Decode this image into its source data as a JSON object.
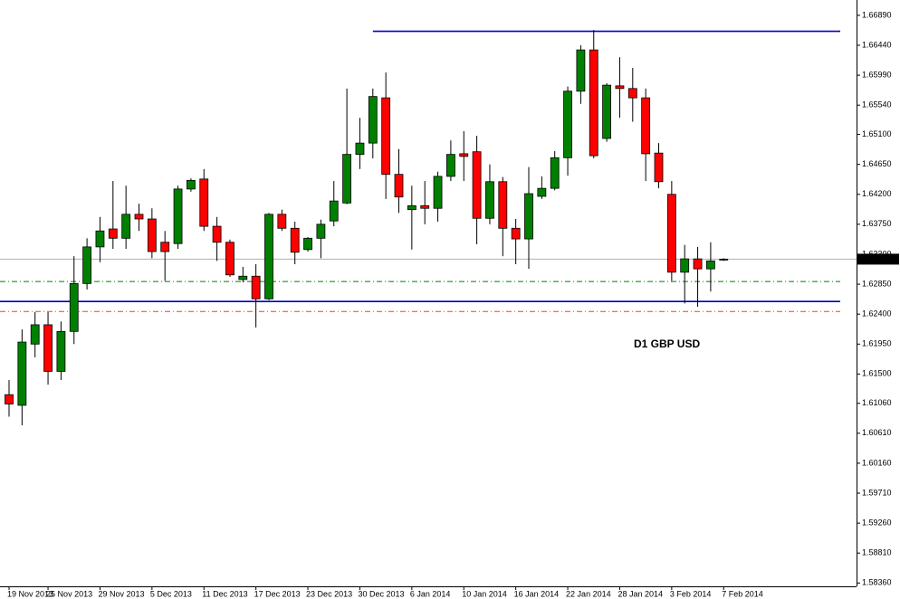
{
  "chart_data": {
    "type": "candlestick",
    "annotation": "D1  GBP USD",
    "annotation_color": "#ff0000",
    "categories": [
      "19 Nov 2013",
      null,
      null,
      "25 Nov 2013",
      null,
      null,
      null,
      "29 Nov 2013",
      null,
      null,
      null,
      "5 Dec 2013",
      null,
      null,
      null,
      "11 Dec 2013",
      null,
      null,
      null,
      "17 Dec 2013",
      null,
      null,
      null,
      "23 Dec 2013",
      null,
      null,
      null,
      "30 Dec 2013",
      null,
      null,
      null,
      "6 Jan 2014",
      null,
      null,
      null,
      "10 Jan 2014",
      null,
      null,
      null,
      "16 Jan 2014",
      null,
      null,
      null,
      "22 Jan 2014",
      null,
      null,
      null,
      "28 Jan 2014",
      null,
      null,
      null,
      "3 Feb 2014",
      null,
      null,
      null,
      "7 Feb 2014"
    ],
    "open": [
      1.6119,
      1.6103,
      1.6195,
      1.6224,
      1.6154,
      1.6214,
      1.6286,
      1.6341,
      1.6368,
      1.6354,
      1.639,
      1.6383,
      1.6348,
      1.6346,
      1.6428,
      1.6443,
      1.6372,
      1.6348,
      1.6292,
      1.6297,
      1.6263,
      1.639,
      1.6369,
      1.6337,
      1.6354,
      1.638,
      1.6407,
      1.648,
      1.6497,
      1.6565,
      1.645,
      1.6397,
      1.6403,
      1.6399,
      1.6447,
      1.6481,
      1.6484,
      1.6384,
      1.6439,
      1.6369,
      1.6353,
      1.6417,
      1.6429,
      1.6475,
      1.6575,
      1.6637,
      1.6504,
      1.6583,
      1.6579,
      1.6565,
      1.6482,
      1.642,
      1.6303,
      1.6323,
      1.6308,
      1.6322
    ],
    "high": [
      1.6141,
      1.6217,
      1.6243,
      1.6243,
      1.6229,
      1.6327,
      1.6354,
      1.6386,
      1.644,
      1.6433,
      1.6406,
      1.6399,
      1.6365,
      1.6433,
      1.6444,
      1.6458,
      1.6386,
      1.6352,
      1.6311,
      1.6315,
      1.6392,
      1.6397,
      1.6379,
      1.6356,
      1.6382,
      1.644,
      1.6579,
      1.6535,
      1.6579,
      1.6603,
      1.6488,
      1.6433,
      1.644,
      1.6454,
      1.6501,
      1.6515,
      1.6508,
      1.6465,
      1.6446,
      1.6383,
      1.6461,
      1.6447,
      1.6485,
      1.6582,
      1.6644,
      1.6667,
      1.6587,
      1.6626,
      1.661,
      1.6579,
      1.6497,
      1.644,
      1.6344,
      1.6341,
      1.6348,
      1.6324
    ],
    "low": [
      1.6086,
      1.6073,
      1.6175,
      1.6134,
      1.6141,
      1.6195,
      1.6277,
      1.6318,
      1.6338,
      1.6338,
      1.6365,
      1.6324,
      1.629,
      1.6338,
      1.6424,
      1.6365,
      1.632,
      1.6296,
      1.6288,
      1.622,
      1.6261,
      1.6365,
      1.6315,
      1.6334,
      1.6324,
      1.6372,
      1.6405,
      1.6458,
      1.6474,
      1.6413,
      1.6392,
      1.6337,
      1.6375,
      1.6379,
      1.644,
      1.644,
      1.6345,
      1.6375,
      1.6327,
      1.6315,
      1.6308,
      1.6413,
      1.6426,
      1.6448,
      1.6556,
      1.6474,
      1.6499,
      1.6535,
      1.6529,
      1.644,
      1.6429,
      1.629,
      1.6256,
      1.6251,
      1.6274,
      1.632
    ],
    "close": [
      1.6105,
      1.6198,
      1.6224,
      1.6154,
      1.6214,
      1.6286,
      1.6341,
      1.6365,
      1.6354,
      1.639,
      1.6383,
      1.6334,
      1.6334,
      1.6428,
      1.6441,
      1.6372,
      1.6348,
      1.6299,
      1.6297,
      1.6263,
      1.639,
      1.6369,
      1.6333,
      1.6354,
      1.6375,
      1.641,
      1.648,
      1.6497,
      1.6567,
      1.645,
      1.6416,
      1.6403,
      1.6399,
      1.6447,
      1.648,
      1.6477,
      1.6384,
      1.6439,
      1.6369,
      1.6353,
      1.6421,
      1.6429,
      1.6475,
      1.6575,
      1.6637,
      1.6478,
      1.6584,
      1.6579,
      1.6565,
      1.6481,
      1.6439,
      1.6303,
      1.6323,
      1.6308,
      1.632,
      1.63226
    ],
    "up_color": "#008000",
    "down_color": "#ff0000",
    "ylim": [
      1.5831,
      1.6712
    ],
    "yticks": [
      {
        "value": 1.6689,
        "label": "1.66890"
      },
      {
        "value": 1.6644,
        "label": "1.66440"
      },
      {
        "value": 1.6599,
        "label": "1.65990"
      },
      {
        "value": 1.6554,
        "label": "1.65540"
      },
      {
        "value": 1.651,
        "label": "1.65100"
      },
      {
        "value": 1.6465,
        "label": "1.64650"
      },
      {
        "value": 1.642,
        "label": "1.64200"
      },
      {
        "value": 1.6375,
        "label": "1.63750"
      },
      {
        "value": 1.633,
        "label": "1.63300"
      },
      {
        "value": 1.6285,
        "label": "1.62850"
      },
      {
        "value": 1.624,
        "label": "1.62400"
      },
      {
        "value": 1.6195,
        "label": "1.61950"
      },
      {
        "value": 1.615,
        "label": "1.61500"
      },
      {
        "value": 1.6106,
        "label": "1.61060"
      },
      {
        "value": 1.6061,
        "label": "1.60610"
      },
      {
        "value": 1.6016,
        "label": "1.60160"
      },
      {
        "value": 1.5971,
        "label": "1.59710"
      },
      {
        "value": 1.5926,
        "label": "1.59260"
      },
      {
        "value": 1.5881,
        "label": "1.58810"
      },
      {
        "value": 1.5836,
        "label": "1.58360"
      }
    ],
    "levels": [
      {
        "value": 1.6665,
        "color": "#0000c0",
        "style": "solid",
        "from": 28
      },
      {
        "value": 1.6259,
        "color": "#0000c0",
        "style": "solid",
        "from": 0
      },
      {
        "value": 1.6289,
        "color": "#008000",
        "style": "dashdot",
        "from": 0
      },
      {
        "value": 1.6244,
        "color": "#ff4000",
        "style": "dashdot",
        "from": 0
      }
    ],
    "last_price": {
      "value": 1.63226,
      "label": "1.63226"
    }
  }
}
